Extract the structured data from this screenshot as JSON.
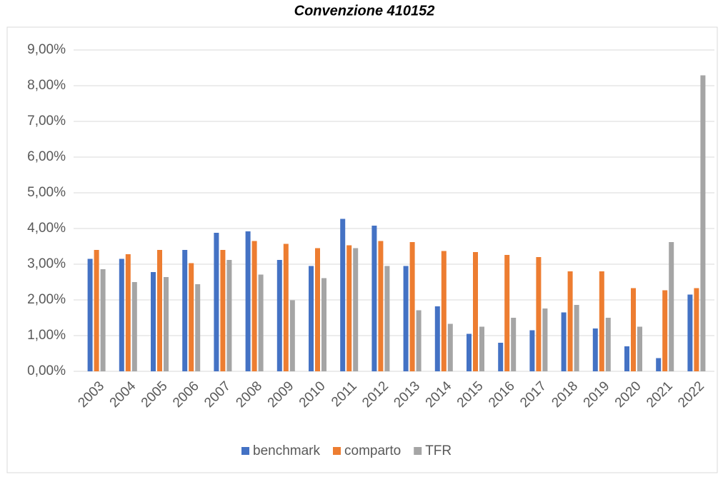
{
  "chart_data": {
    "type": "bar",
    "title": "Convenzione 410152",
    "categories": [
      "2003",
      "2004",
      "2005",
      "2006",
      "2007",
      "2008",
      "2009",
      "2010",
      "2011",
      "2012",
      "2013",
      "2014",
      "2015",
      "2016",
      "2017",
      "2018",
      "2019",
      "2020",
      "2021",
      "2022"
    ],
    "series": [
      {
        "name": "benchmark",
        "color": "#4472c4",
        "values": [
          3.15,
          3.15,
          2.78,
          3.4,
          3.88,
          3.92,
          3.12,
          2.95,
          4.27,
          4.08,
          2.95,
          1.82,
          1.05,
          0.8,
          1.15,
          1.65,
          1.2,
          0.7,
          0.37,
          2.15
        ]
      },
      {
        "name": "comparto",
        "color": "#ed7d31",
        "values": [
          3.4,
          3.28,
          3.4,
          3.03,
          3.4,
          3.65,
          3.57,
          3.45,
          3.53,
          3.65,
          3.62,
          3.37,
          3.34,
          3.26,
          3.2,
          2.8,
          2.8,
          2.33,
          2.27,
          2.33
        ]
      },
      {
        "name": "TFR",
        "color": "#a5a5a5",
        "values": [
          2.86,
          2.5,
          2.64,
          2.44,
          3.12,
          2.71,
          1.99,
          2.61,
          3.45,
          2.95,
          1.71,
          1.33,
          1.25,
          1.5,
          1.76,
          1.86,
          1.5,
          1.25,
          3.62,
          8.29
        ]
      }
    ],
    "ylim": [
      0,
      9
    ],
    "yticks": [
      {
        "value": 0,
        "label": "0,00%"
      },
      {
        "value": 1,
        "label": "1,00%"
      },
      {
        "value": 2,
        "label": "2,00%"
      },
      {
        "value": 3,
        "label": "3,00%"
      },
      {
        "value": 4,
        "label": "4,00%"
      },
      {
        "value": 5,
        "label": "5,00%"
      },
      {
        "value": 6,
        "label": "6,00%"
      },
      {
        "value": 7,
        "label": "7,00%"
      },
      {
        "value": 8,
        "label": "8,00%"
      },
      {
        "value": 9,
        "label": "9,00%"
      }
    ],
    "grid": true,
    "legend": "bottom"
  }
}
